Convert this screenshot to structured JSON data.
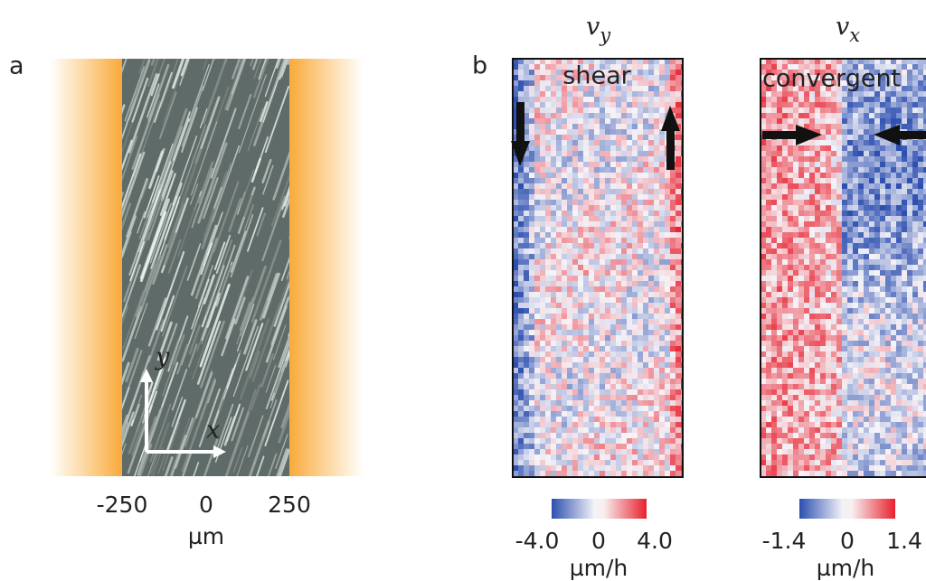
{
  "panel_a": {
    "label": "a",
    "axis_y": "y",
    "axis_x": "x",
    "ticks": [
      "-250",
      "0",
      "250"
    ],
    "unit": "µm"
  },
  "panel_b": {
    "label": "b",
    "maps": [
      {
        "symbol": "v",
        "subscript": "y",
        "annotation": "shear",
        "colorbar_ticks": [
          "-4.0",
          "0",
          "4.0"
        ],
        "unit": "µm/h"
      },
      {
        "symbol": "v",
        "subscript": "x",
        "annotation": "convergent",
        "colorbar_ticks": [
          "-1.4",
          "0",
          "1.4"
        ],
        "unit": "µm/h"
      }
    ]
  }
}
